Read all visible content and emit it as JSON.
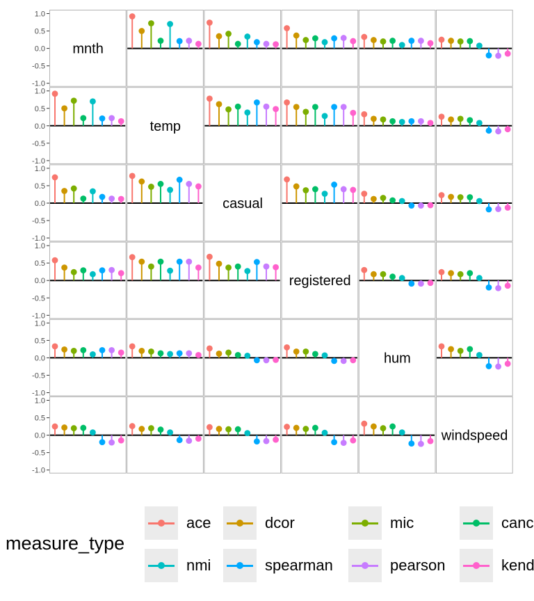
{
  "chart_data": {
    "type": "lollipop-matrix",
    "variables": [
      "mnth",
      "temp",
      "casual",
      "registered",
      "hum",
      "windspeed"
    ],
    "measures": [
      "ace",
      "dcor",
      "mic",
      "canc",
      "nmi",
      "spearman",
      "pearson",
      "kend"
    ],
    "colors": {
      "ace": "#F8766D",
      "dcor": "#CD9600",
      "mic": "#7CAE00",
      "canc": "#00BE67",
      "nmi": "#00BFC4",
      "spearman": "#00A9FF",
      "pearson": "#C77CFF",
      "kend": "#FF61CC"
    },
    "y_range": [
      -1.0,
      1.0
    ],
    "y_ticks": [
      "1.0",
      "0.5",
      "0.0",
      "-0.5",
      "-1.0"
    ],
    "pairs": {
      "mnth|temp": [
        0.92,
        0.5,
        0.72,
        0.22,
        0.7,
        0.21,
        0.22,
        0.13
      ],
      "mnth|casual": [
        0.74,
        0.35,
        0.42,
        0.13,
        0.34,
        0.18,
        0.13,
        0.12
      ],
      "mnth|registered": [
        0.58,
        0.37,
        0.24,
        0.29,
        0.18,
        0.29,
        0.3,
        0.21
      ],
      "mnth|hum": [
        0.33,
        0.24,
        0.2,
        0.22,
        0.1,
        0.22,
        0.22,
        0.15
      ],
      "mnth|windspeed": [
        0.25,
        0.22,
        0.2,
        0.21,
        0.08,
        -0.2,
        -0.21,
        -0.15
      ],
      "temp|casual": [
        0.78,
        0.62,
        0.47,
        0.55,
        0.38,
        0.67,
        0.55,
        0.48
      ],
      "temp|registered": [
        0.67,
        0.54,
        0.4,
        0.54,
        0.28,
        0.54,
        0.54,
        0.37
      ],
      "temp|hum": [
        0.33,
        0.2,
        0.18,
        0.13,
        0.11,
        0.13,
        0.13,
        0.08
      ],
      "temp|windspeed": [
        0.26,
        0.18,
        0.2,
        0.16,
        0.08,
        -0.14,
        -0.16,
        -0.1
      ],
      "casual|registered": [
        0.68,
        0.48,
        0.37,
        0.4,
        0.27,
        0.53,
        0.4,
        0.38
      ],
      "casual|hum": [
        0.27,
        0.12,
        0.15,
        0.08,
        0.06,
        -0.07,
        -0.07,
        -0.06
      ],
      "casual|windspeed": [
        0.23,
        0.18,
        0.17,
        0.17,
        0.06,
        -0.18,
        -0.17,
        -0.13
      ],
      "registered|hum": [
        0.3,
        0.18,
        0.18,
        0.11,
        0.07,
        -0.09,
        -0.09,
        -0.07
      ],
      "registered|windspeed": [
        0.24,
        0.21,
        0.18,
        0.21,
        0.07,
        -0.2,
        -0.22,
        -0.15
      ],
      "hum|windspeed": [
        0.33,
        0.25,
        0.2,
        0.25,
        0.08,
        -0.24,
        -0.25,
        -0.17
      ]
    }
  },
  "legend": {
    "title": "measure_type",
    "items": [
      {
        "key": "ace",
        "label": "ace"
      },
      {
        "key": "dcor",
        "label": "dcor"
      },
      {
        "key": "mic",
        "label": "mic"
      },
      {
        "key": "canc",
        "label": "canc"
      },
      {
        "key": "nmi",
        "label": "nmi"
      },
      {
        "key": "spearman",
        "label": "spearman"
      },
      {
        "key": "pearson",
        "label": "pearson"
      },
      {
        "key": "kend",
        "label": "kend"
      }
    ]
  }
}
